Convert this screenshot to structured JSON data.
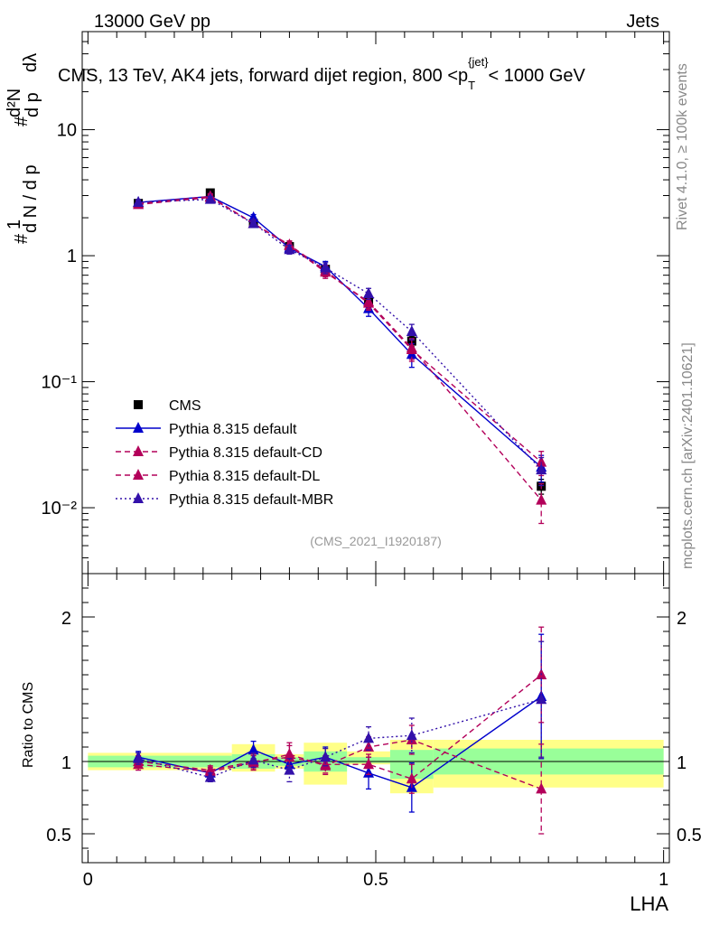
{
  "header": {
    "left": "13000 GeV pp",
    "right": "Jets"
  },
  "title": "CMS, 13 TeV, AK4 jets, forward dijet region, 800 <p_T^{jet}< 1000 GeV",
  "title_parts": {
    "pre": "CMS, 13 TeV, AK4 jets, forward dijet region, 800 <p",
    "sub": "T",
    "sup": "{jet}",
    "post": "< 1000 GeV"
  },
  "side": {
    "rivet": "Rivet 4.1.0, ≥ 100k events",
    "mcplots": "mcplots.cern.ch [arXiv:2401.10621]"
  },
  "analysis_id": "(CMS_2021_I1920187)",
  "colors": {
    "cms": "#000000",
    "default": "#0000cc",
    "cd": "#b3005a",
    "dl": "#b3005a",
    "mbr": "#3311aa",
    "band_yellow": "#ffff88",
    "band_green": "#99ff99"
  },
  "chart_data": [
    {
      "type": "line",
      "scale": "log",
      "ylabel": "1/N dN/dp_T d²N/dp_T dλ",
      "ylim": [
        0.003,
        60
      ],
      "xlim": [
        -0.01,
        1.01
      ],
      "ytick_labels": [
        "10⁻²",
        "10⁻¹",
        "1",
        "10"
      ],
      "yticks": [
        0.01,
        0.1,
        1,
        10
      ],
      "x": [
        0.0875,
        0.2125,
        0.2875,
        0.35,
        0.4125,
        0.4875,
        0.5625,
        0.7875
      ],
      "legend": [
        "CMS",
        "Pythia 8.315 default",
        "Pythia 8.315 default-CD",
        "Pythia 8.315 default-DL",
        "Pythia 8.315 default-MBR"
      ],
      "series": [
        {
          "name": "CMS",
          "style": "marker",
          "values": [
            2.6,
            3.15,
            1.8,
            1.18,
            0.78,
            0.44,
            0.21,
            0.0148
          ],
          "err": [
            0.1,
            0.12,
            0.08,
            0.06,
            0.04,
            0.03,
            0.02,
            0.002
          ]
        },
        {
          "name": "Pythia 8.315 default",
          "style": "solid",
          "values": [
            2.65,
            2.95,
            2.0,
            1.15,
            0.82,
            0.38,
            0.165,
            0.021
          ],
          "err": [
            0.12,
            0.15,
            0.12,
            0.09,
            0.08,
            0.05,
            0.035,
            0.005
          ]
        },
        {
          "name": "Pythia 8.315 default-CD",
          "style": "dash",
          "values": [
            2.6,
            2.95,
            1.8,
            1.22,
            0.76,
            0.42,
            0.18,
            0.023
          ],
          "err": [
            0.12,
            0.15,
            0.12,
            0.09,
            0.08,
            0.05,
            0.035,
            0.005
          ]
        },
        {
          "name": "Pythia 8.315 default-DL",
          "style": "dash",
          "values": [
            2.55,
            2.9,
            1.8,
            1.2,
            0.74,
            0.43,
            0.185,
            0.0115
          ],
          "err": [
            0.12,
            0.15,
            0.12,
            0.09,
            0.08,
            0.05,
            0.035,
            0.004
          ]
        },
        {
          "name": "Pythia 8.315 default-MBR",
          "style": "dot",
          "values": [
            2.65,
            2.8,
            1.8,
            1.12,
            0.8,
            0.5,
            0.25,
            0.02
          ],
          "err": [
            0.12,
            0.15,
            0.12,
            0.09,
            0.08,
            0.05,
            0.035,
            0.005
          ]
        }
      ]
    },
    {
      "type": "line",
      "scale": "linear",
      "ylabel": "Ratio to CMS",
      "xlabel": "LHA",
      "ylim": [
        0.3,
        2.3
      ],
      "xlim": [
        -0.01,
        1.01
      ],
      "yticks": [
        0.5,
        1,
        2
      ],
      "ytick_labels": [
        "0.5",
        "1",
        "2"
      ],
      "xticks": [
        0,
        0.5,
        1
      ],
      "xtick_labels": [
        "0",
        "0.5",
        "1"
      ],
      "x": [
        0.0875,
        0.2125,
        0.2875,
        0.35,
        0.4125,
        0.4875,
        0.5625,
        0.7875
      ],
      "bands": {
        "edges": [
          0,
          0.25,
          0.325,
          0.375,
          0.45,
          0.525,
          0.6,
          1.0
        ],
        "yellow": [
          [
            0.94,
            1.06
          ],
          [
            0.93,
            1.12
          ],
          [
            0.95,
            1.05
          ],
          [
            0.84,
            1.13
          ],
          [
            0.98,
            1.07
          ],
          [
            0.78,
            1.15
          ],
          [
            0.82,
            1.15
          ]
        ],
        "green": [
          [
            0.96,
            1.04
          ],
          [
            0.95,
            1.05
          ],
          [
            0.97,
            1.03
          ],
          [
            0.93,
            1.07
          ],
          [
            0.99,
            1.03
          ],
          [
            0.88,
            1.08
          ],
          [
            0.91,
            1.09
          ]
        ]
      },
      "series": [
        {
          "name": "Pythia 8.315 default",
          "style": "solid",
          "values": [
            1.03,
            0.92,
            1.08,
            0.98,
            1.03,
            0.92,
            0.82,
            1.45
          ],
          "err": [
            0.04,
            0.03,
            0.06,
            0.05,
            0.07,
            0.11,
            0.17,
            0.43
          ]
        },
        {
          "name": "Pythia 8.315 default-CD",
          "style": "dash",
          "values": [
            1.0,
            0.94,
            1.0,
            1.03,
            0.98,
            0.98,
            0.88,
            1.6
          ],
          "err": [
            0.04,
            0.03,
            0.05,
            0.08,
            0.06,
            0.07,
            0.1,
            0.33
          ]
        },
        {
          "name": "Pythia 8.315 default-DL",
          "style": "dash",
          "values": [
            0.98,
            0.93,
            0.99,
            1.05,
            0.97,
            1.1,
            1.15,
            0.81
          ],
          "err": [
            0.04,
            0.03,
            0.05,
            0.08,
            0.06,
            0.07,
            0.1,
            0.31
          ]
        },
        {
          "name": "Pythia 8.315 default-MBR",
          "style": "dot",
          "values": [
            1.02,
            0.89,
            1.01,
            0.94,
            1.03,
            1.16,
            1.18,
            1.43
          ],
          "err": [
            0.04,
            0.03,
            0.05,
            0.08,
            0.06,
            0.08,
            0.12,
            0.4
          ]
        }
      ]
    }
  ]
}
